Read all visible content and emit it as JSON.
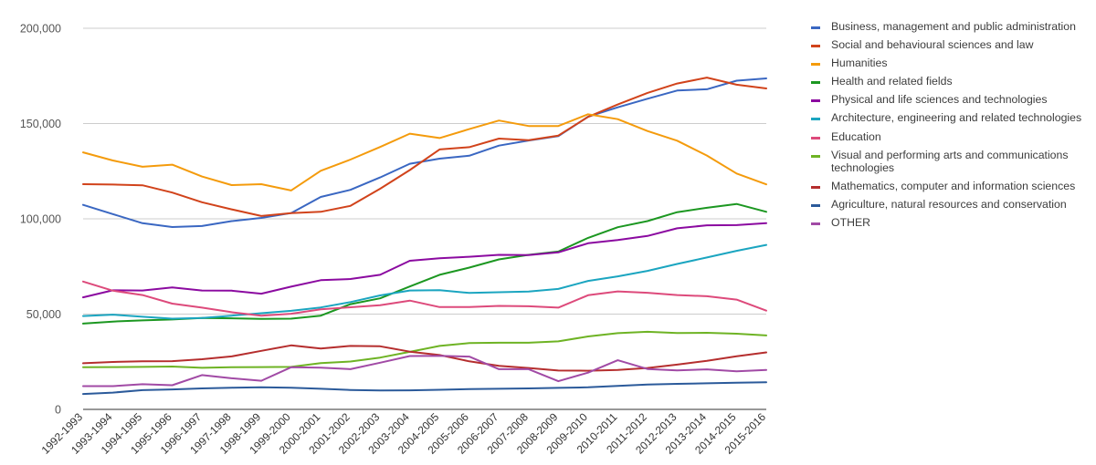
{
  "chart_data": {
    "type": "line",
    "title": "",
    "xlabel": "",
    "ylabel": "",
    "ylim": [
      0,
      200000
    ],
    "yticks": [
      0,
      50000,
      100000,
      150000,
      200000
    ],
    "ytick_labels": [
      "0",
      "50,000",
      "100,000",
      "150,000",
      "200,000"
    ],
    "grid": true,
    "legend_position": "right",
    "categories": [
      "1992-1993",
      "1993-1994",
      "1994-1995",
      "1995-1996",
      "1996-1997",
      "1997-1998",
      "1998-1999",
      "1999-2000",
      "2000-2001",
      "2001-2002",
      "2002-2003",
      "2003-2004",
      "2004-2005",
      "2005-2006",
      "2006-2007",
      "2007-2008",
      "2008-2009",
      "2009-2010",
      "2010-2011",
      "2011-2012",
      "2012-2013",
      "2013-2014",
      "2014-2015",
      "2015-2016"
    ],
    "series": [
      {
        "name": "Business, management and public administration",
        "color": "#3a67c2",
        "values": [
          107300,
          102500,
          97700,
          95700,
          96200,
          98800,
          100500,
          103000,
          111500,
          115200,
          121700,
          128900,
          131600,
          133100,
          138400,
          141100,
          143400,
          153600,
          158500,
          163000,
          167300,
          168000,
          172500,
          173700
        ]
      },
      {
        "name": "Social and behavioural sciences and law",
        "color": "#d1431b",
        "values": [
          118200,
          118000,
          117600,
          113800,
          108700,
          105000,
          101500,
          103000,
          103700,
          106800,
          115800,
          125600,
          136400,
          137600,
          142100,
          141300,
          143700,
          153500,
          160000,
          166100,
          171000,
          174100,
          170400,
          168400
        ]
      },
      {
        "name": "Humanities",
        "color": "#f49b0c",
        "values": [
          134900,
          130600,
          127300,
          128400,
          122200,
          117700,
          118200,
          114900,
          125200,
          131100,
          137700,
          144700,
          142400,
          147100,
          151600,
          148700,
          148700,
          154900,
          152300,
          146100,
          141000,
          133200,
          123800,
          118100
        ]
      },
      {
        "name": "Health and related fields",
        "color": "#1c9721",
        "values": [
          45000,
          46100,
          46700,
          47200,
          48000,
          47800,
          47500,
          47600,
          49200,
          55200,
          58300,
          64500,
          70600,
          74400,
          78700,
          81100,
          82800,
          90000,
          95600,
          98800,
          103500,
          105800,
          107800,
          103700
        ]
      },
      {
        "name": "Physical and life sciences and technologies",
        "color": "#8b0aa0",
        "values": [
          58800,
          62500,
          62400,
          64000,
          62400,
          62300,
          60700,
          64400,
          67800,
          68400,
          70600,
          78000,
          79300,
          80100,
          81100,
          81000,
          82400,
          87200,
          88900,
          91000,
          95000,
          96600,
          96700,
          97700
        ]
      },
      {
        "name": "Architecture, engineering and related technologies",
        "color": "#1ba5c0",
        "values": [
          49000,
          49700,
          48600,
          47600,
          48000,
          49200,
          50500,
          51700,
          53500,
          56300,
          59800,
          62400,
          62600,
          61100,
          61500,
          61800,
          63200,
          67400,
          69800,
          72700,
          76300,
          79700,
          83200,
          86300
        ]
      },
      {
        "name": "Education",
        "color": "#dd4a7b",
        "values": [
          67100,
          62300,
          60000,
          55500,
          53400,
          51000,
          49200,
          50200,
          52500,
          53600,
          54700,
          57100,
          53700,
          53700,
          54300,
          54100,
          53400,
          59900,
          61900,
          61200,
          60000,
          59400,
          57600,
          51800
        ]
      },
      {
        "name": "Visual and performing arts and communications technologies",
        "color": "#6eb324",
        "values": [
          22100,
          22200,
          22300,
          22500,
          21800,
          22100,
          22200,
          22300,
          24300,
          25100,
          27200,
          30200,
          33300,
          34800,
          35000,
          35000,
          35700,
          38300,
          40000,
          40700,
          40100,
          40200,
          39700,
          38800
        ]
      },
      {
        "name": "Mathematics, computer and information sciences",
        "color": "#b52e2e",
        "values": [
          24200,
          24900,
          25200,
          25300,
          26300,
          27800,
          30700,
          33600,
          31900,
          33300,
          33100,
          30300,
          28500,
          25200,
          22800,
          21700,
          20400,
          20300,
          20700,
          21700,
          23500,
          25500,
          27900,
          29900
        ]
      },
      {
        "name": "Agriculture, natural resources and conservation",
        "color": "#2b5a9a",
        "values": [
          8100,
          8800,
          10100,
          10500,
          11000,
          11400,
          11600,
          11400,
          10800,
          10200,
          9900,
          10000,
          10300,
          10600,
          10800,
          11000,
          11300,
          11600,
          12300,
          13000,
          13400,
          13700,
          14000,
          14200
        ]
      },
      {
        "name": "OTHER",
        "color": "#a14aa5",
        "values": [
          12200,
          12200,
          13200,
          12700,
          18000,
          16300,
          15000,
          22100,
          21900,
          21100,
          24500,
          28000,
          28100,
          27700,
          21100,
          21100,
          14800,
          19300,
          25800,
          21200,
          20500,
          21000,
          20000,
          20700
        ]
      }
    ]
  }
}
